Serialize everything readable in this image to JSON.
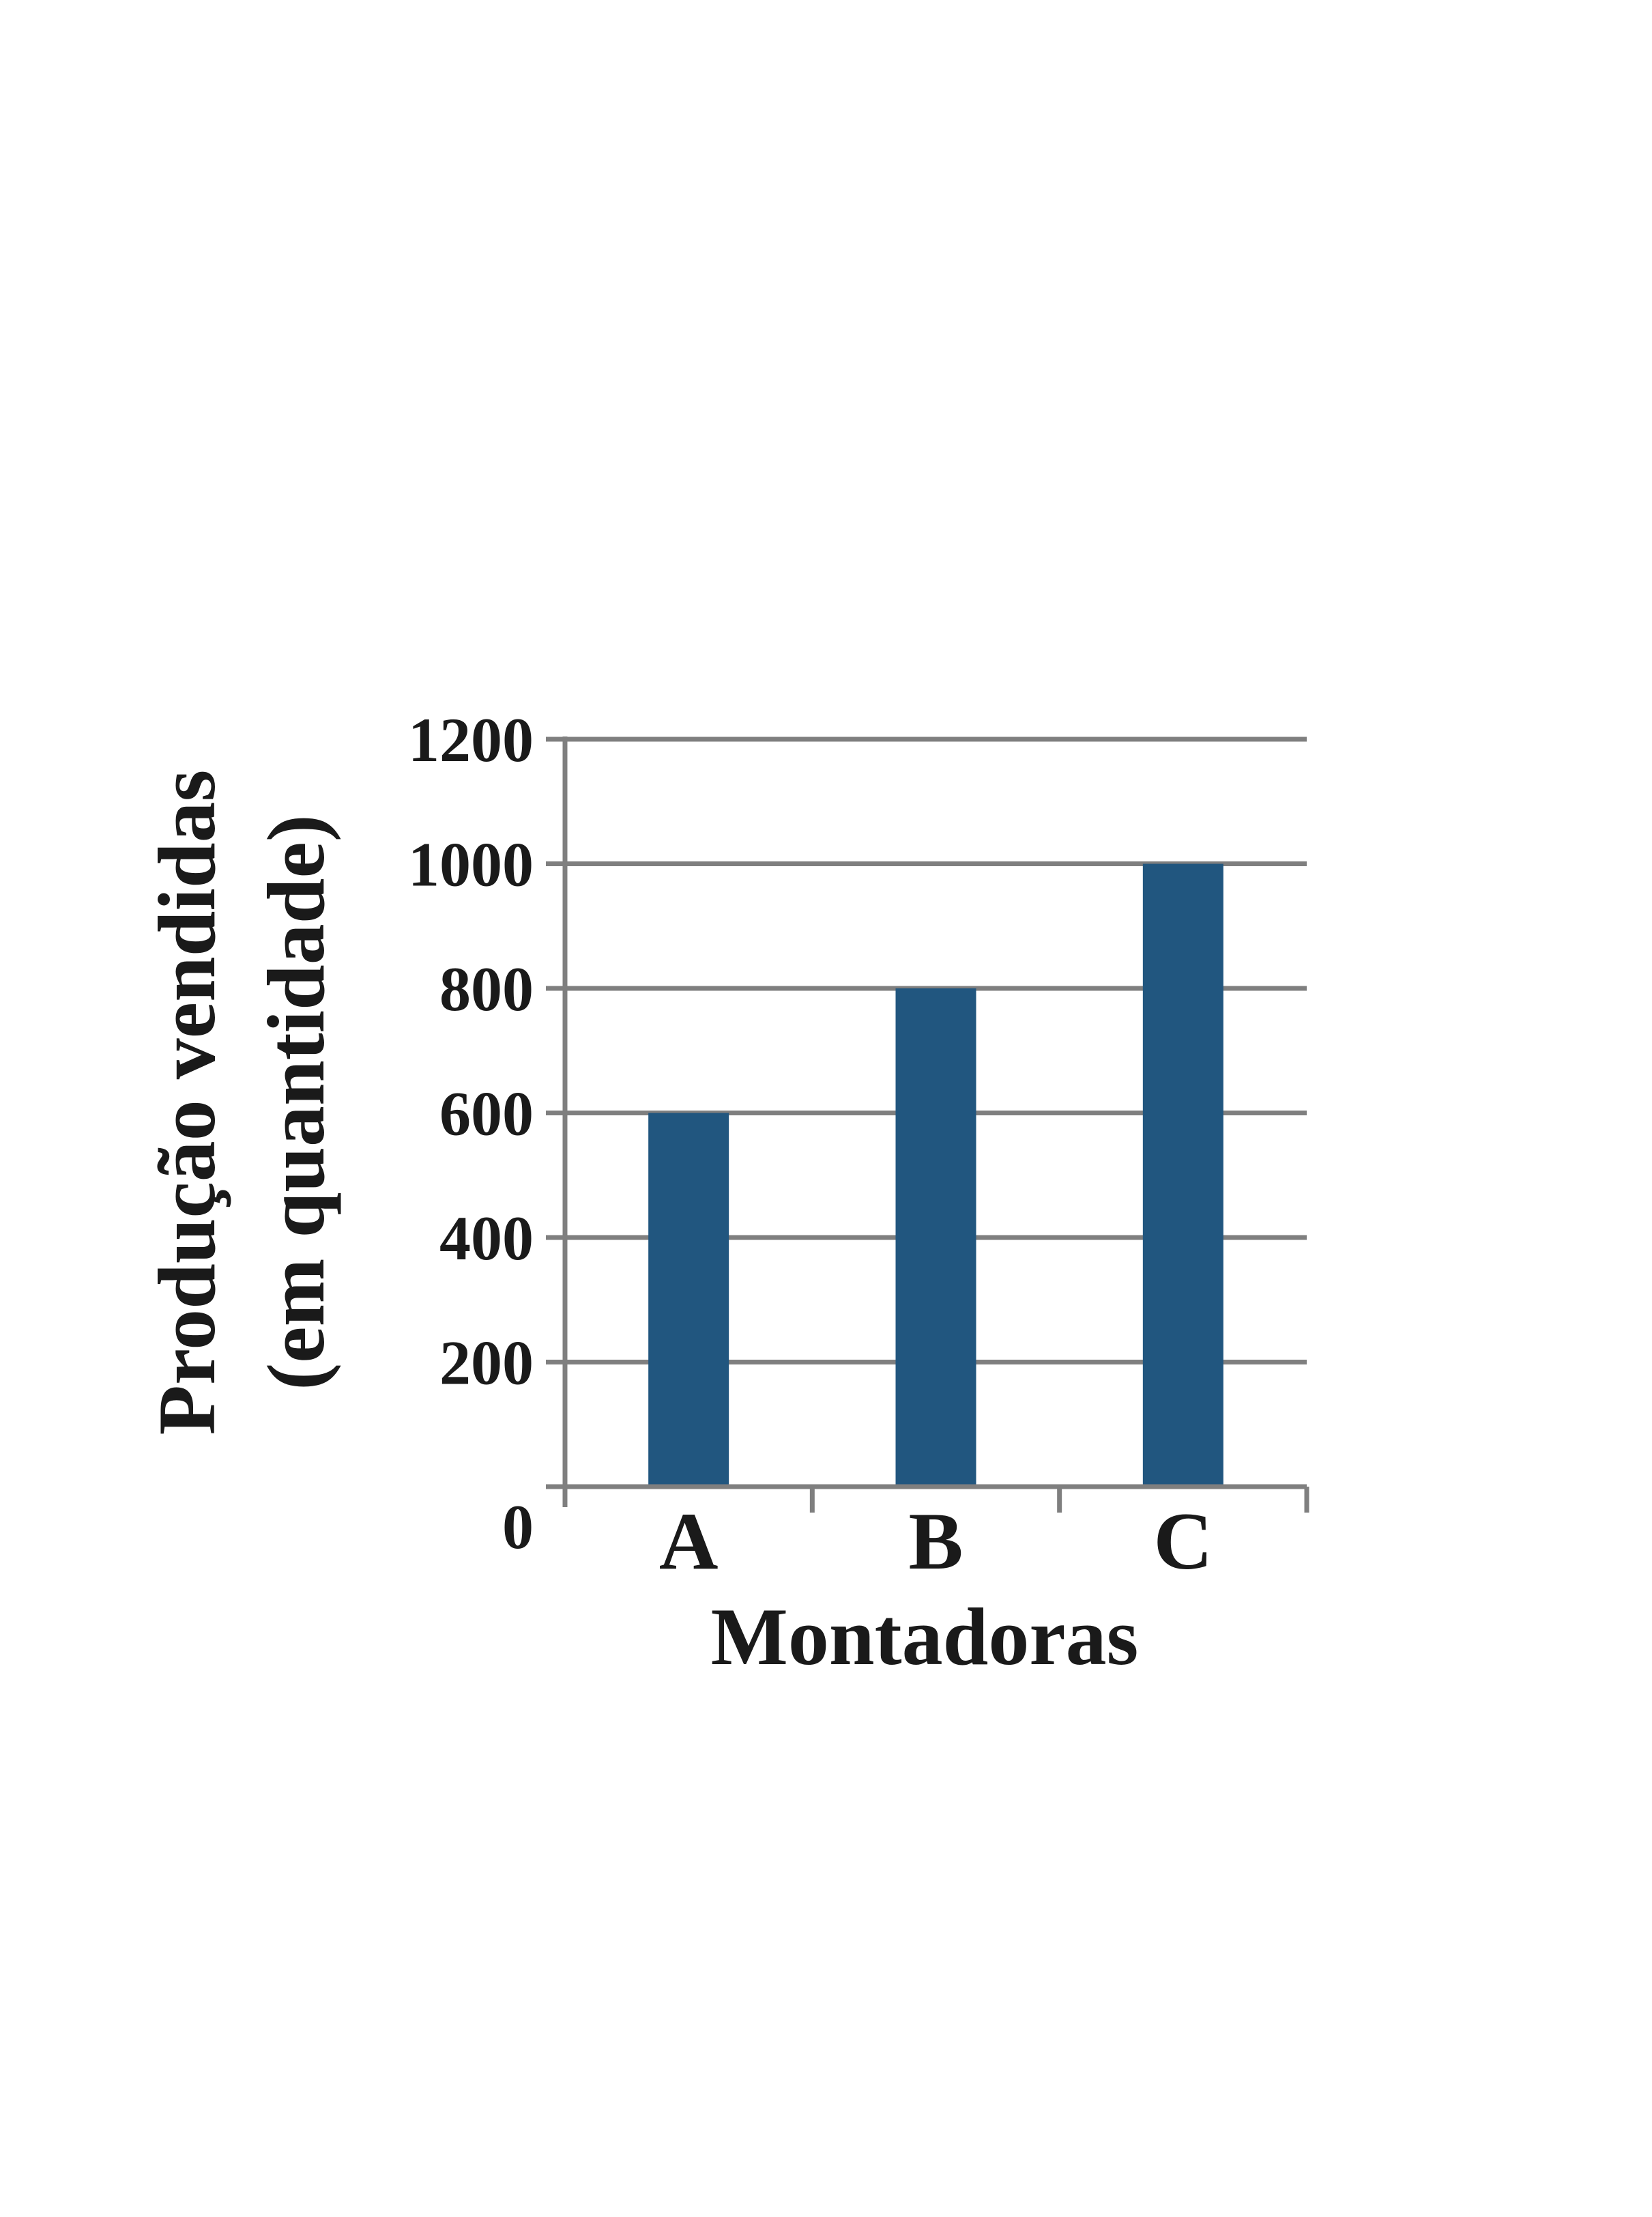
{
  "chart_data": {
    "type": "bar",
    "categories": [
      "A",
      "B",
      "C"
    ],
    "values": [
      600,
      800,
      1000
    ],
    "xlabel": "Montadoras",
    "ylabel_lines": [
      "Produção vendidas",
      "(em quantidade)"
    ],
    "ylim": [
      0,
      1200
    ],
    "yticks": [
      0,
      200,
      400,
      600,
      800,
      1000,
      1200
    ],
    "ytick_labels": [
      "0",
      "200",
      "400",
      "600",
      "800",
      "1000",
      "1200"
    ],
    "grid": true,
    "legend": "none",
    "colors": {
      "bar": "#21567f",
      "grid": "#7f7f7f",
      "text": "#1a1a1a"
    }
  }
}
